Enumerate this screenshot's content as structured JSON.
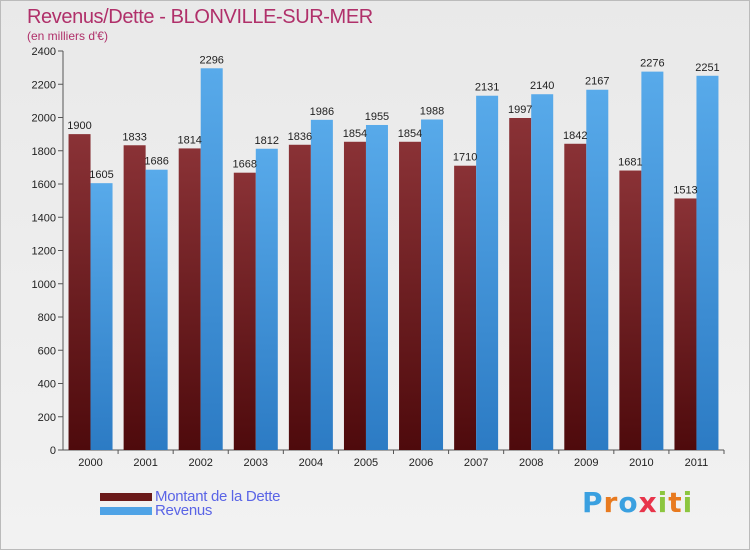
{
  "header": {
    "title": "Revenus/Dette - BLONVILLE-SUR-MER",
    "subtitle": "(en milliers d'€)"
  },
  "colors": {
    "dette": "#7b2a2e",
    "dette_dark": "#4e0a0c",
    "revenus": "#4fa3e6",
    "revenus_dark": "#2c7bc4",
    "title": "#b0306a",
    "legend_text": "#5a64e6"
  },
  "legend": {
    "items": [
      {
        "label": "Montant de la Dette",
        "color": "#6b1a1a"
      },
      {
        "label": "Revenus",
        "color": "#4fa3e6"
      }
    ]
  },
  "logo": {
    "text": "Proxiti"
  },
  "chart_data": {
    "type": "bar",
    "title": "Revenus/Dette - BLONVILLE-SUR-MER",
    "ylabel": "(en milliers d'€)",
    "xlabel": "",
    "ylim": [
      0,
      2400
    ],
    "yticks": [
      0,
      200,
      400,
      600,
      800,
      1000,
      1200,
      1400,
      1600,
      1800,
      2000,
      2200,
      2400
    ],
    "grid": false,
    "categories": [
      "2000",
      "2001",
      "2002",
      "2003",
      "2004",
      "2005",
      "2006",
      "2007",
      "2008",
      "2009",
      "2010",
      "2011"
    ],
    "series": [
      {
        "name": "Montant de la Dette",
        "values": [
          1900,
          1833,
          1814,
          1668,
          1836,
          1854,
          1854,
          1710,
          1997,
          1842,
          1681,
          1513
        ]
      },
      {
        "name": "Revenus",
        "values": [
          1605,
          1686,
          2296,
          1812,
          1986,
          1955,
          1988,
          2131,
          2140,
          2167,
          2276,
          2251
        ]
      }
    ]
  }
}
